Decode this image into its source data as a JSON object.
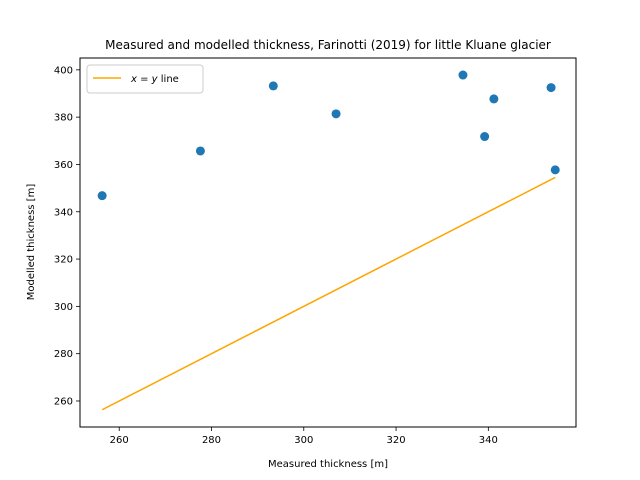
{
  "chart_data": {
    "type": "scatter",
    "title": "Measured and modelled thickness, Farinotti (2019) for little Kluane glacier",
    "xlabel": "Measured thickness [m]",
    "ylabel": "Modelled thickness [m]",
    "xlim": [
      251.5,
      359.0
    ],
    "ylim": [
      249.0,
      405.0
    ],
    "xticks": [
      260,
      280,
      300,
      320,
      340
    ],
    "yticks": [
      260,
      280,
      300,
      320,
      340,
      360,
      380,
      400
    ],
    "grid": false,
    "legend_position": "upper-left",
    "series": [
      {
        "name": "",
        "kind": "scatter",
        "color": "#1f77b4",
        "x": [
          256.3,
          277.6,
          293.4,
          307.0,
          334.5,
          339.2,
          341.2,
          353.6,
          354.5
        ],
        "y": [
          346.8,
          365.7,
          393.2,
          381.4,
          397.8,
          371.8,
          387.7,
          392.5,
          357.7
        ]
      },
      {
        "name": "x = y line",
        "kind": "line",
        "color": "#ffa500",
        "x": [
          256.3,
          354.5
        ],
        "y": [
          256.3,
          354.5
        ]
      }
    ],
    "legend": {
      "entries": [
        {
          "math_x": "x",
          "math_eq": " = ",
          "math_y": "y",
          "text": " line",
          "color": "#ffa500"
        }
      ]
    }
  }
}
